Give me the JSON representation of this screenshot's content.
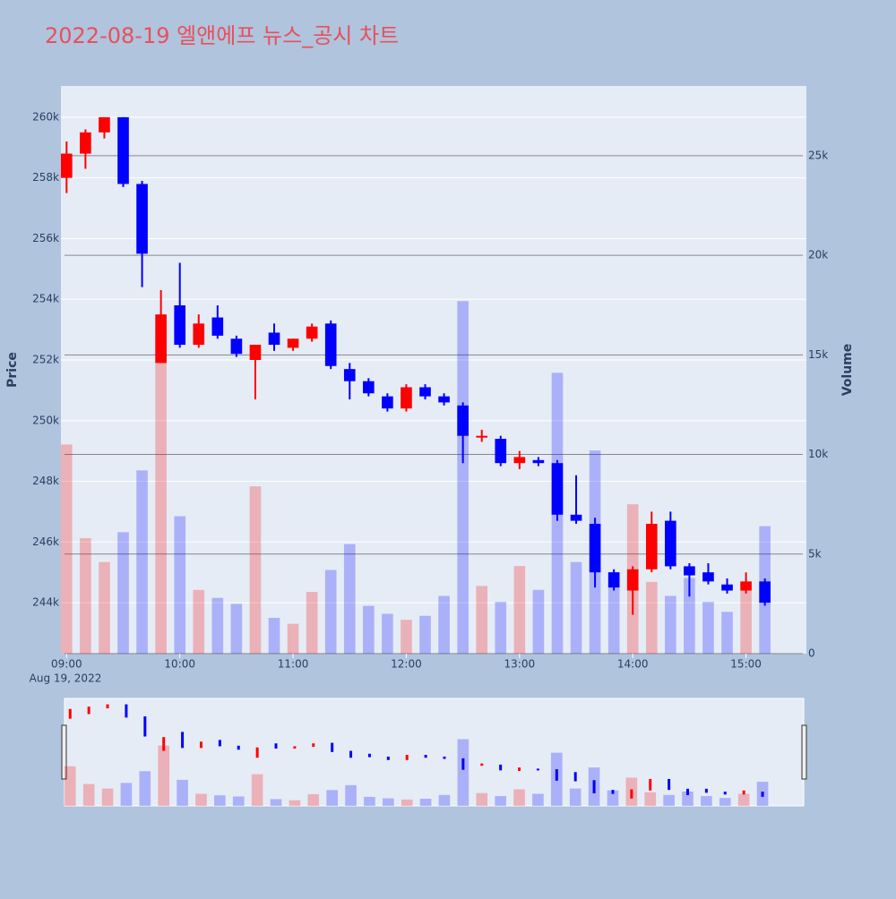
{
  "chart_data": {
    "type": "candlestick",
    "title": "2022-08-19 엘앤에프 뉴스_공시 차트",
    "y_label": "Price",
    "y2_label": "Volume",
    "x_date_label": "Aug 19, 2022",
    "rising_color": "#ff0000",
    "falling_color": "#0000ff",
    "x": [
      "09:00",
      "09:10",
      "09:20",
      "09:30",
      "09:40",
      "09:50",
      "10:00",
      "10:10",
      "10:20",
      "10:30",
      "10:40",
      "10:50",
      "11:00",
      "11:10",
      "11:20",
      "11:30",
      "11:40",
      "11:50",
      "12:00",
      "12:10",
      "12:20",
      "12:30",
      "12:40",
      "12:50",
      "13:00",
      "13:10",
      "13:20",
      "13:30",
      "13:40",
      "13:50",
      "14:00",
      "14:10",
      "14:20",
      "14:30",
      "14:40",
      "14:50",
      "15:00",
      "15:10"
    ],
    "open": [
      258000,
      258800,
      259500,
      260000,
      257800,
      251900,
      253800,
      252500,
      253400,
      252700,
      252000,
      252900,
      252400,
      252700,
      253200,
      251700,
      251300,
      250800,
      250400,
      251100,
      250800,
      250500,
      249500,
      249400,
      248600,
      248700,
      248600,
      246900,
      246600,
      245000,
      244400,
      245100,
      246700,
      245200,
      245000,
      244600,
      244400,
      244700
    ],
    "high": [
      259200,
      259600,
      260000,
      260000,
      257900,
      254300,
      255200,
      253500,
      253800,
      252800,
      252500,
      253200,
      252700,
      253200,
      253300,
      251900,
      251400,
      250900,
      251200,
      251200,
      250900,
      250600,
      249700,
      249500,
      249000,
      248800,
      248700,
      248200,
      246800,
      245100,
      245200,
      247000,
      247000,
      245300,
      245300,
      244800,
      245000,
      244800
    ],
    "low": [
      257500,
      258300,
      259300,
      257700,
      254400,
      251900,
      252400,
      252400,
      252700,
      252100,
      250700,
      252300,
      252300,
      252600,
      251700,
      250700,
      250800,
      250300,
      250300,
      250700,
      250500,
      248600,
      249300,
      248500,
      248400,
      248500,
      246700,
      246600,
      244500,
      244400,
      243600,
      245000,
      245100,
      244200,
      244600,
      244300,
      244300,
      243900
    ],
    "close": [
      258800,
      259500,
      260000,
      257800,
      255500,
      253500,
      252500,
      253200,
      252800,
      252200,
      252500,
      252500,
      252700,
      253100,
      251800,
      251300,
      250900,
      250400,
      251100,
      250800,
      250600,
      249500,
      249500,
      248600,
      248800,
      248600,
      246900,
      246700,
      245000,
      244500,
      245100,
      246600,
      245200,
      244900,
      244700,
      244400,
      244700,
      244000
    ],
    "volume": [
      10500,
      5800,
      4600,
      6100,
      9200,
      16000,
      6900,
      3200,
      2800,
      2500,
      8400,
      1800,
      1500,
      3100,
      4200,
      5500,
      2400,
      2000,
      1700,
      1900,
      2900,
      17700,
      3400,
      2600,
      4400,
      3200,
      14100,
      4600,
      10200,
      4100,
      7500,
      3600,
      2900,
      3800,
      2600,
      2100,
      3200,
      6400
    ],
    "xlim": [
      "08:57",
      "15:32"
    ],
    "xticks": [
      "09:00",
      "10:00",
      "11:00",
      "12:00",
      "13:00",
      "14:00",
      "15:00"
    ],
    "ylim": [
      242320,
      261030
    ],
    "yticks": [
      {
        "value": 244000,
        "label": "244k"
      },
      {
        "value": 246000,
        "label": "246k"
      },
      {
        "value": 248000,
        "label": "248k"
      },
      {
        "value": 250000,
        "label": "250k"
      },
      {
        "value": 252000,
        "label": "252k"
      },
      {
        "value": 254000,
        "label": "254k"
      },
      {
        "value": 256000,
        "label": "256k"
      },
      {
        "value": 258000,
        "label": "258k"
      },
      {
        "value": 260000,
        "label": "260k"
      }
    ],
    "y2lim": [
      0,
      28500
    ],
    "y2ticks": [
      0,
      {
        "value": 5000,
        "label": "5k"
      },
      {
        "value": 10000,
        "label": "10k"
      },
      {
        "value": 15000,
        "label": "15k"
      },
      {
        "value": 20000,
        "label": "20k"
      },
      {
        "value": 25000,
        "label": "25k"
      }
    ],
    "grid": true
  }
}
